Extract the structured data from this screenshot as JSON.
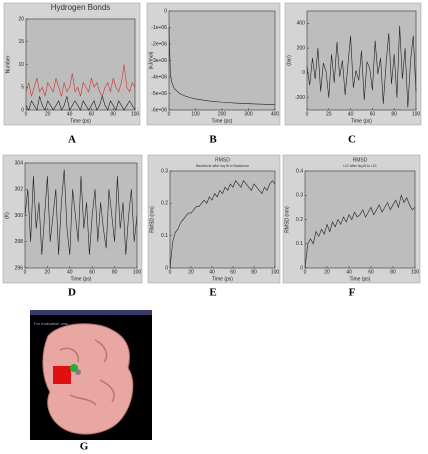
{
  "chart_data": [
    {
      "type": "line",
      "panel_label": "A",
      "title": "Hydrogen Bonds",
      "xlabel": "Time (ps)",
      "ylabel": "Number",
      "x": [
        0,
        2.5,
        5,
        7.5,
        10,
        12.5,
        15,
        17.5,
        20,
        22.5,
        25,
        27.5,
        30,
        32.5,
        35,
        37.5,
        40,
        42.5,
        45,
        47.5,
        50,
        52.5,
        55,
        57.5,
        60,
        62.5,
        65,
        67.5,
        70,
        72.5,
        75,
        77.5,
        80,
        82.5,
        85,
        87.5,
        90,
        92.5,
        95,
        97.5,
        100
      ],
      "series": [
        {
          "color": "#d03030",
          "values": [
            4,
            6,
            3,
            5,
            7,
            4,
            5,
            3,
            6,
            5,
            4,
            7,
            5,
            3,
            6,
            4,
            5,
            8,
            4,
            5,
            3,
            6,
            5,
            4,
            7,
            5,
            6,
            4,
            3,
            5,
            6,
            4,
            7,
            5,
            4,
            6,
            10,
            5,
            4,
            6,
            5
          ]
        },
        {
          "color": "#202020",
          "values": [
            1,
            0,
            2,
            1,
            0,
            3,
            1,
            0,
            2,
            1,
            0,
            1,
            2,
            0,
            1,
            3,
            0,
            1,
            2,
            1,
            0,
            2,
            1,
            0,
            1,
            2,
            0,
            1,
            3,
            1,
            0,
            2,
            1,
            0,
            2,
            1,
            0,
            1,
            2,
            1,
            0
          ]
        }
      ],
      "xlim": [
        0,
        100
      ],
      "ylim": [
        0,
        20
      ],
      "xticks": [
        0,
        20,
        40,
        60,
        80,
        100
      ],
      "yticks": [
        0,
        5,
        10,
        15,
        20
      ]
    },
    {
      "type": "line",
      "panel_label": "B",
      "xlabel": "Time (ps)",
      "ylabel": "(kJ/mol)",
      "x": [
        0,
        5,
        10,
        20,
        40,
        60,
        80,
        100,
        150,
        200,
        250,
        300,
        350,
        400
      ],
      "series": [
        {
          "color": "#202020",
          "values": [
            -1000000,
            -3800000,
            -4300000,
            -4700000,
            -5000000,
            -5150000,
            -5250000,
            -5330000,
            -5450000,
            -5530000,
            -5580000,
            -5620000,
            -5650000,
            -5680000
          ]
        }
      ],
      "xlim": [
        0,
        400
      ],
      "ylim": [
        -6000000,
        0
      ],
      "xticks": [
        0,
        100,
        200,
        300,
        400
      ],
      "yticks": [
        0,
        {
          "value": -1000000,
          "label": "-1e+06"
        },
        {
          "value": -2000000,
          "label": "-2e+06"
        },
        {
          "value": -3000000,
          "label": "-3e+06"
        },
        {
          "value": -4000000,
          "label": "-4e+06"
        },
        {
          "value": -5000000,
          "label": "-5e+06"
        },
        {
          "value": -6000000,
          "label": "-6e+06"
        }
      ]
    },
    {
      "type": "line",
      "panel_label": "C",
      "xlabel": "Time (ps)",
      "ylabel": "(bar)",
      "x": [
        0,
        2.5,
        5,
        7.5,
        10,
        12.5,
        15,
        17.5,
        20,
        22.5,
        25,
        27.5,
        30,
        32.5,
        35,
        37.5,
        40,
        42.5,
        45,
        47.5,
        50,
        52.5,
        55,
        57.5,
        60,
        62.5,
        65,
        67.5,
        70,
        72.5,
        75,
        77.5,
        80,
        82.5,
        85,
        87.5,
        90,
        92.5,
        95,
        97.5,
        100
      ],
      "series": [
        {
          "color": "#202020",
          "values": [
            50,
            -100,
            120,
            -50,
            200,
            -150,
            80,
            10,
            -200,
            150,
            -80,
            250,
            -30,
            100,
            -180,
            60,
            300,
            -120,
            20,
            -60,
            180,
            -220,
            90,
            40,
            -140,
            260,
            -10,
            120,
            -250,
            70,
            320,
            -90,
            150,
            -200,
            380,
            -50,
            200,
            -280,
            100,
            300,
            -150
          ]
        }
      ],
      "xlim": [
        0,
        100
      ],
      "ylim": [
        -300,
        500
      ],
      "xticks": [
        0,
        20,
        40,
        60,
        80,
        100
      ],
      "yticks": [
        -200,
        0,
        200,
        400
      ]
    },
    {
      "type": "line",
      "panel_label": "D",
      "xlabel": "Time (ps)",
      "ylabel": "(K)",
      "x": [
        0,
        2.5,
        5,
        7.5,
        10,
        12.5,
        15,
        17.5,
        20,
        22.5,
        25,
        27.5,
        30,
        32.5,
        35,
        37.5,
        40,
        42.5,
        45,
        47.5,
        50,
        52.5,
        55,
        57.5,
        60,
        62.5,
        65,
        67.5,
        70,
        72.5,
        75,
        77.5,
        80,
        82.5,
        85,
        87.5,
        90,
        92.5,
        95,
        97.5,
        100
      ],
      "series": [
        {
          "color": "#202020",
          "values": [
            300,
            302,
            298,
            303,
            299,
            301,
            297,
            300,
            303,
            298,
            300,
            302,
            297,
            301,
            303.5,
            299,
            297,
            302,
            300,
            298,
            303,
            299,
            301,
            297,
            300,
            302,
            298,
            301,
            299,
            297.5,
            302,
            300,
            298,
            303,
            299,
            301,
            297,
            300,
            302,
            298,
            300
          ]
        }
      ],
      "xlim": [
        0,
        100
      ],
      "ylim": [
        296,
        304
      ],
      "xticks": [
        0,
        20,
        40,
        60,
        80,
        100
      ],
      "yticks": [
        296,
        298,
        300,
        302,
        304
      ]
    },
    {
      "type": "line",
      "panel_label": "E",
      "title": "RMSD",
      "subtitle": "Backbone after lsq fit to Backbone",
      "xlabel": "Time (ps)",
      "ylabel": "RMSD (nm)",
      "x": [
        0,
        2.5,
        5,
        7.5,
        10,
        12.5,
        15,
        17.5,
        20,
        22.5,
        25,
        27.5,
        30,
        32.5,
        35,
        37.5,
        40,
        42.5,
        45,
        47.5,
        50,
        52.5,
        55,
        57.5,
        60,
        62.5,
        65,
        67.5,
        70,
        72.5,
        75,
        77.5,
        80,
        82.5,
        85,
        87.5,
        90,
        92.5,
        95,
        97.5,
        100
      ],
      "series": [
        {
          "color": "#202020",
          "values": [
            0,
            0.08,
            0.11,
            0.12,
            0.14,
            0.15,
            0.16,
            0.17,
            0.17,
            0.18,
            0.19,
            0.19,
            0.2,
            0.21,
            0.2,
            0.22,
            0.21,
            0.23,
            0.22,
            0.24,
            0.23,
            0.25,
            0.24,
            0.26,
            0.25,
            0.27,
            0.26,
            0.25,
            0.27,
            0.26,
            0.25,
            0.24,
            0.26,
            0.25,
            0.24,
            0.23,
            0.25,
            0.24,
            0.26,
            0.27,
            0.26
          ]
        }
      ],
      "xlim": [
        0,
        100
      ],
      "ylim": [
        0,
        0.3
      ],
      "xticks": [
        0,
        20,
        40,
        60,
        80,
        100
      ],
      "yticks": [
        0,
        0.1,
        0.2,
        0.3
      ]
    },
    {
      "type": "line",
      "panel_label": "F",
      "title": "RMSD",
      "subtitle": "LIG after lsq fit to LIG",
      "xlabel": "Time (ps)",
      "ylabel": "RMSD (nm)",
      "x": [
        0,
        2.5,
        5,
        7.5,
        10,
        12.5,
        15,
        17.5,
        20,
        22.5,
        25,
        27.5,
        30,
        32.5,
        35,
        37.5,
        40,
        42.5,
        45,
        47.5,
        50,
        52.5,
        55,
        57.5,
        60,
        62.5,
        65,
        67.5,
        70,
        72.5,
        75,
        77.5,
        80,
        82.5,
        85,
        87.5,
        90,
        92.5,
        95,
        97.5,
        100
      ],
      "series": [
        {
          "color": "#202020",
          "values": [
            0,
            0.1,
            0.12,
            0.1,
            0.15,
            0.13,
            0.16,
            0.14,
            0.18,
            0.15,
            0.19,
            0.17,
            0.2,
            0.18,
            0.21,
            0.19,
            0.22,
            0.2,
            0.23,
            0.21,
            0.22,
            0.24,
            0.21,
            0.23,
            0.25,
            0.22,
            0.24,
            0.26,
            0.23,
            0.25,
            0.27,
            0.24,
            0.26,
            0.28,
            0.25,
            0.3,
            0.27,
            0.29,
            0.26,
            0.24,
            0.25
          ]
        }
      ],
      "xlim": [
        0,
        100
      ],
      "ylim": [
        0,
        0.4
      ],
      "xticks": [
        0,
        20,
        40,
        60,
        80,
        100
      ],
      "yticks": [
        0,
        0.1,
        0.2,
        0.3,
        0.4
      ]
    }
  ],
  "figure_g": {
    "panel_label": "G",
    "note": "For evaluation only."
  }
}
